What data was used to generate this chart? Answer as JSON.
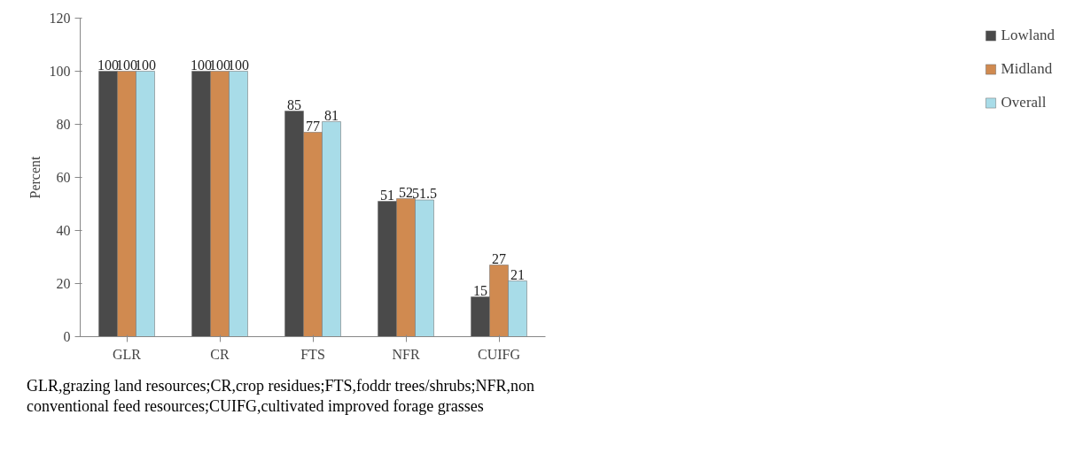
{
  "chart_data": {
    "type": "bar",
    "ylabel": "Percent",
    "categories": [
      "GLR",
      "CR",
      "FTS",
      "NFR",
      "CUIFG"
    ],
    "series": [
      {
        "name": "Lowland",
        "color": "#4a4a4a",
        "values": [
          100,
          100,
          85,
          51,
          15
        ]
      },
      {
        "name": "Midland",
        "color": "#d08a50",
        "values": [
          100,
          100,
          77,
          52,
          27
        ]
      },
      {
        "name": "Overall",
        "color": "#a8dce8",
        "values": [
          100,
          100,
          81,
          51.5,
          21
        ]
      }
    ],
    "ylim": [
      0,
      120
    ],
    "yticks": [
      0,
      20,
      40,
      60,
      80,
      100,
      120
    ],
    "grid": false,
    "legend": "right",
    "data_labels": true,
    "annotations": [
      "GLR,grazing land resources;CR,crop residues;FTS,foddr trees/shrubs;NFR,non",
      "conventional feed resources;CUIFG,cultivated improved forage grasses"
    ]
  }
}
